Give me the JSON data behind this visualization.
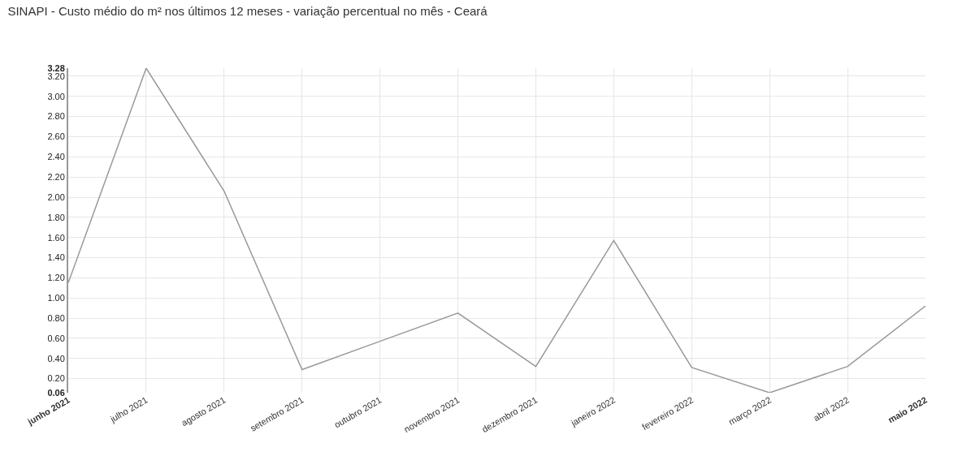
{
  "chart_data": {
    "type": "line",
    "title": "SINAPI - Custo médio do m² nos últimos 12 meses - variação percentual no mês - Ceará",
    "categories": [
      "junho 2021",
      "julho 2021",
      "agosto 2021",
      "setembro 2021",
      "outubro 2021",
      "novembro 2021",
      "dezembro 2021",
      "janeiro 2022",
      "fevereiro 2022",
      "março 2022",
      "abril 2022",
      "maio 2022"
    ],
    "series": [
      {
        "color": "#999999",
        "values": [
          1.15,
          3.28,
          2.06,
          0.29,
          0.57,
          0.85,
          0.32,
          1.57,
          0.31,
          0.06,
          0.32,
          0.92
        ]
      }
    ],
    "ylim": [
      0.06,
      3.28
    ],
    "yticks": [
      0.06,
      {
        "value": 0.2,
        "label": "0.20"
      },
      {
        "value": 0.4,
        "label": "0.40"
      },
      {
        "value": 0.6,
        "label": "0.60"
      },
      {
        "value": 0.8,
        "label": "0.80"
      },
      {
        "value": 1.0,
        "label": "1.00"
      },
      {
        "value": 1.2,
        "label": "1.20"
      },
      {
        "value": 1.4,
        "label": "1.40"
      },
      {
        "value": 1.6,
        "label": "1.60"
      },
      {
        "value": 1.8,
        "label": "1.80"
      },
      {
        "value": 2.0,
        "label": "2.00"
      },
      {
        "value": 2.2,
        "label": "2.20"
      },
      {
        "value": 2.4,
        "label": "2.40"
      },
      {
        "value": 2.6,
        "label": "2.60"
      },
      {
        "value": 2.8,
        "label": "2.80"
      },
      {
        "value": 3.0,
        "label": "3.00"
      },
      {
        "value": 3.2,
        "label": "3.20"
      },
      3.28
    ],
    "grid": true,
    "marker": "none",
    "line_style": "solid"
  }
}
